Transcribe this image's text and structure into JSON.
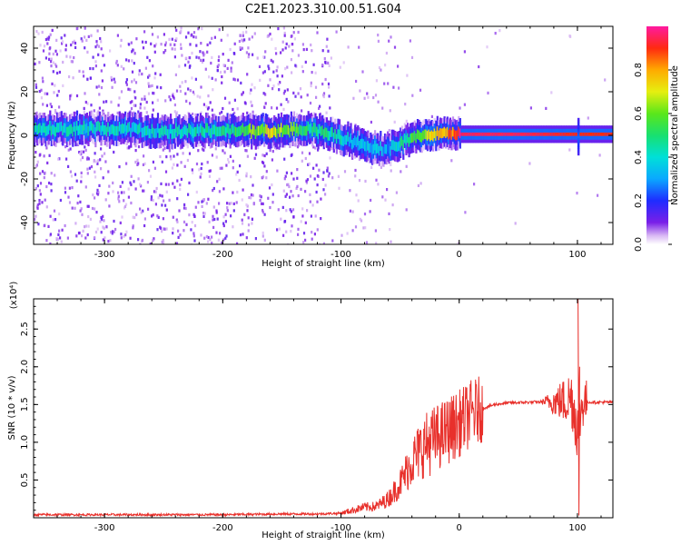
{
  "title": "C2E1.2023.310.00.51.G04",
  "chart_data": [
    {
      "type": "heatmap",
      "xlabel": "Height of straight line (km)",
      "ylabel": "Frequency (Hz)",
      "xlim": [
        -360,
        130
      ],
      "ylim": [
        -50,
        50
      ],
      "x_ticks": [
        -300,
        -200,
        -100,
        0,
        100
      ],
      "y_ticks": [
        -40,
        -20,
        0,
        20,
        40
      ],
      "colorbar": {
        "label": "Normalized spectral amplitude",
        "range": [
          0,
          1
        ],
        "ticks": [
          "0.0",
          "0.2",
          "0.4",
          "0.6",
          "0.8"
        ],
        "colormap": "rainbow (white-violet-blue-cyan-green-yellow-orange-red-magenta)"
      },
      "ridge": {
        "x": [
          -360,
          -300,
          -250,
          -200,
          -160,
          -130,
          -110,
          -90,
          -75,
          -60,
          -45,
          -35,
          -25,
          -10,
          0,
          50,
          100,
          130
        ],
        "freq": [
          3,
          3,
          2,
          2,
          2,
          3,
          1,
          -3,
          -6,
          -6,
          -2,
          0,
          1,
          0.5,
          0.5,
          0.5,
          0.5,
          0.5
        ],
        "amplitude": [
          0.4,
          0.4,
          0.4,
          0.45,
          0.7,
          0.5,
          0.45,
          0.35,
          0.35,
          0.3,
          0.5,
          0.6,
          0.7,
          0.8,
          0.95,
          0.95,
          0.9,
          0.9
        ]
      }
    },
    {
      "type": "line",
      "xlabel": "Height of straight line (km)",
      "ylabel": "SNR (10 * v/v)",
      "y_multiplier": "(x10⁴)",
      "xlim": [
        -360,
        130
      ],
      "ylim": [
        0,
        2.9
      ],
      "x_ticks": [
        -300,
        -200,
        -100,
        0,
        100
      ],
      "y_ticks": [
        "0.5",
        "1.0",
        "1.5",
        "2.0",
        "2.5"
      ],
      "color": "#e8302b",
      "series": [
        {
          "x": [
            -360,
            -300,
            -250,
            -200,
            -150,
            -120,
            -100,
            -90,
            -80,
            -70,
            -60,
            -50,
            -40,
            -30,
            -20,
            -10,
            0,
            10,
            20,
            30,
            40,
            60,
            80,
            90,
            95,
            100,
            105,
            110,
            130
          ],
          "values": [
            0.04,
            0.04,
            0.04,
            0.04,
            0.05,
            0.05,
            0.06,
            0.1,
            0.14,
            0.15,
            0.25,
            0.45,
            0.75,
            0.95,
            1.05,
            1.15,
            1.25,
            1.38,
            1.45,
            1.5,
            1.52,
            1.53,
            1.54,
            1.55,
            1.6,
            1.2,
            1.55,
            1.53,
            1.53
          ]
        }
      ],
      "spike": {
        "x": 101,
        "peak": 2.9,
        "min": 0.03
      }
    }
  ],
  "colors": {
    "axis": "#000000",
    "line": "#e8302b",
    "background": "#ffffff"
  }
}
